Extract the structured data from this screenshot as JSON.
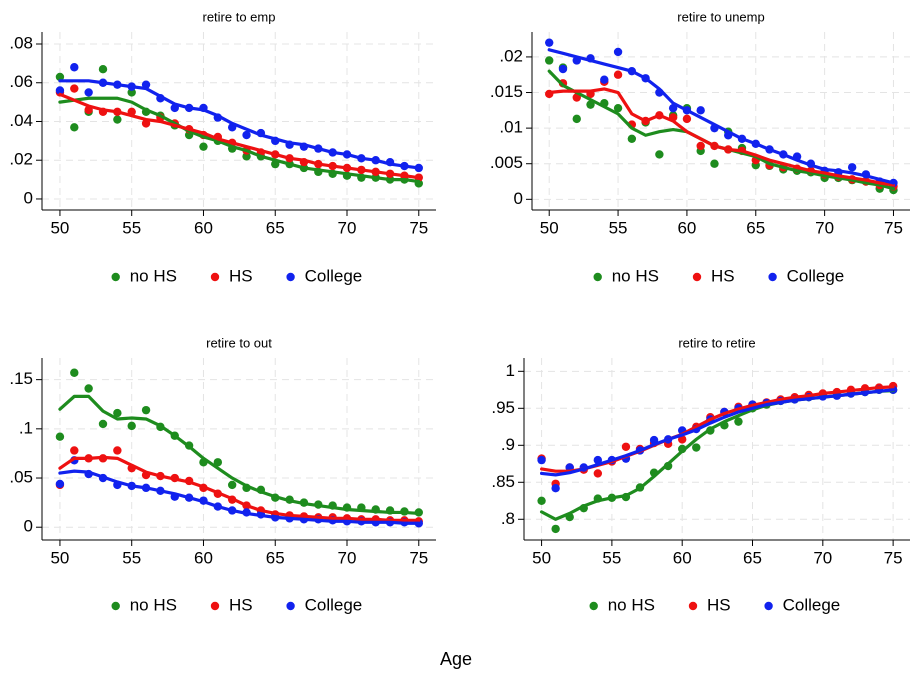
{
  "xlabel": "Age",
  "chart_data": [
    {
      "type": "scatter",
      "title": "retire to emp",
      "grid": true,
      "x": [
        50,
        51,
        52,
        53,
        54,
        55,
        56,
        57,
        58,
        59,
        60,
        61,
        62,
        63,
        64,
        65,
        66,
        67,
        68,
        69,
        70,
        71,
        72,
        73,
        74,
        75
      ],
      "xlim": [
        48.75,
        76.2
      ],
      "xticks": [
        50,
        55,
        60,
        65,
        70,
        75
      ],
      "ylim": [
        -0.0057,
        0.0862
      ],
      "yticks": [
        0,
        {
          "value": 0.02,
          "label": ".02"
        },
        {
          "value": 0.04,
          "label": ".04"
        },
        {
          "value": 0.06,
          "label": ".06"
        },
        {
          "value": 0.08,
          "label": ".08"
        }
      ],
      "series": [
        {
          "name": "no HS",
          "color": "#1e8c1e",
          "values": [
            0.063,
            0.037,
            0.045,
            0.067,
            0.041,
            0.055,
            0.045,
            0.043,
            0.038,
            0.033,
            0.027,
            0.03,
            0.026,
            0.022,
            0.022,
            0.018,
            0.018,
            0.016,
            0.014,
            0.013,
            0.012,
            0.011,
            0.011,
            0.01,
            0.01,
            0.008
          ],
          "fit": [
            0.05,
            0.051,
            0.052,
            0.052,
            0.052,
            0.05,
            0.046,
            0.043,
            0.039,
            0.035,
            0.032,
            0.03,
            0.027,
            0.025,
            0.022,
            0.02,
            0.018,
            0.016,
            0.015,
            0.014,
            0.013,
            0.012,
            0.011,
            0.01,
            0.01,
            0.009
          ]
        },
        {
          "name": "HS",
          "color": "#ee1111",
          "values": [
            0.055,
            0.057,
            0.046,
            0.045,
            0.045,
            0.045,
            0.039,
            0.042,
            0.039,
            0.036,
            0.033,
            0.032,
            0.029,
            0.025,
            0.024,
            0.023,
            0.021,
            0.019,
            0.018,
            0.017,
            0.016,
            0.015,
            0.014,
            0.013,
            0.012,
            0.011
          ],
          "fit": [
            0.054,
            0.051,
            0.048,
            0.046,
            0.045,
            0.043,
            0.041,
            0.04,
            0.038,
            0.036,
            0.034,
            0.031,
            0.029,
            0.027,
            0.025,
            0.023,
            0.021,
            0.02,
            0.018,
            0.017,
            0.016,
            0.015,
            0.014,
            0.013,
            0.012,
            0.011
          ]
        },
        {
          "name": "College",
          "color": "#1122ee",
          "values": [
            0.056,
            0.068,
            0.055,
            0.06,
            0.059,
            0.058,
            0.059,
            0.052,
            0.047,
            0.047,
            0.047,
            0.042,
            0.037,
            0.033,
            0.034,
            0.03,
            0.028,
            0.027,
            0.026,
            0.024,
            0.023,
            0.021,
            0.02,
            0.019,
            0.017,
            0.016
          ],
          "fit": [
            0.061,
            0.061,
            0.061,
            0.06,
            0.059,
            0.058,
            0.057,
            0.053,
            0.049,
            0.047,
            0.046,
            0.043,
            0.039,
            0.036,
            0.033,
            0.031,
            0.029,
            0.028,
            0.026,
            0.024,
            0.023,
            0.021,
            0.02,
            0.018,
            0.017,
            0.016
          ]
        }
      ]
    },
    {
      "type": "scatter",
      "title": "retire to unemp",
      "grid": true,
      "x": [
        50,
        51,
        52,
        53,
        54,
        55,
        56,
        57,
        58,
        59,
        60,
        61,
        62,
        63,
        64,
        65,
        66,
        67,
        68,
        69,
        70,
        71,
        72,
        73,
        74,
        75
      ],
      "xlim": [
        48.75,
        76.2
      ],
      "xticks": [
        50,
        55,
        60,
        65,
        70,
        75
      ],
      "ylim": [
        -0.0015,
        0.0235
      ],
      "yticks": [
        0,
        {
          "value": 0.005,
          "label": ".005"
        },
        {
          "value": 0.01,
          "label": ".01"
        },
        {
          "value": 0.015,
          "label": ".015"
        },
        {
          "value": 0.02,
          "label": ".02"
        }
      ],
      "series": [
        {
          "name": "no HS",
          "color": "#1e8c1e",
          "values": [
            0.0195,
            0.0185,
            0.0113,
            0.0133,
            0.0135,
            0.0128,
            0.0085,
            0.0108,
            0.0063,
            0.0118,
            0.0128,
            0.0068,
            0.005,
            0.0095,
            0.0072,
            0.0048,
            0.0047,
            0.0042,
            0.004,
            0.0038,
            0.003,
            0.003,
            0.0027,
            0.0025,
            0.0015,
            0.0013
          ],
          "fit": [
            0.018,
            0.016,
            0.015,
            0.014,
            0.013,
            0.012,
            0.01,
            0.009,
            0.0095,
            0.0098,
            0.0095,
            0.0085,
            0.0075,
            0.007,
            0.0065,
            0.006,
            0.005,
            0.0045,
            0.004,
            0.0037,
            0.0033,
            0.003,
            0.0027,
            0.0023,
            0.002,
            0.0015
          ]
        },
        {
          "name": "HS",
          "color": "#ee1111",
          "values": [
            0.0148,
            0.0163,
            0.0143,
            0.0148,
            0.0165,
            0.0175,
            0.0105,
            0.011,
            0.0118,
            0.0115,
            0.0113,
            0.0075,
            0.0075,
            0.007,
            0.0068,
            0.0055,
            0.0048,
            0.0045,
            0.0043,
            0.004,
            0.0035,
            0.0032,
            0.0028,
            0.0025,
            0.002,
            0.0018
          ],
          "fit": [
            0.015,
            0.0152,
            0.0152,
            0.0152,
            0.0155,
            0.015,
            0.012,
            0.011,
            0.0118,
            0.011,
            0.0095,
            0.0085,
            0.0075,
            0.007,
            0.0068,
            0.0062,
            0.0055,
            0.005,
            0.0045,
            0.004,
            0.0037,
            0.0033,
            0.003,
            0.0027,
            0.0023,
            0.002
          ]
        },
        {
          "name": "College",
          "color": "#1122ee",
          "values": [
            0.022,
            0.0183,
            0.0195,
            0.0198,
            0.0168,
            0.0207,
            0.018,
            0.017,
            0.015,
            0.0128,
            0.0125,
            0.0125,
            0.01,
            0.009,
            0.0085,
            0.0078,
            0.007,
            0.0063,
            0.006,
            0.005,
            0.004,
            0.0038,
            0.0045,
            0.0035,
            0.0025,
            0.0023
          ],
          "fit": [
            0.021,
            0.0205,
            0.02,
            0.0195,
            0.019,
            0.0185,
            0.018,
            0.017,
            0.0155,
            0.0135,
            0.0125,
            0.0115,
            0.0105,
            0.0095,
            0.0085,
            0.0078,
            0.007,
            0.0063,
            0.0055,
            0.0048,
            0.0042,
            0.004,
            0.0037,
            0.0033,
            0.0028,
            0.0023
          ]
        }
      ]
    },
    {
      "type": "scatter",
      "title": "retire to out",
      "grid": true,
      "x": [
        50,
        51,
        52,
        53,
        54,
        55,
        56,
        57,
        58,
        59,
        60,
        61,
        62,
        63,
        64,
        65,
        66,
        67,
        68,
        69,
        70,
        71,
        72,
        73,
        74,
        75
      ],
      "xlim": [
        48.75,
        76.2
      ],
      "xticks": [
        50,
        55,
        60,
        65,
        70,
        75
      ],
      "ylim": [
        -0.013,
        0.172
      ],
      "yticks": [
        0,
        {
          "value": 0.05,
          "label": ".05"
        },
        {
          "value": 0.1,
          "label": ".1"
        },
        {
          "value": 0.15,
          "label": ".15"
        }
      ],
      "series": [
        {
          "name": "no HS",
          "color": "#1e8c1e",
          "values": [
            0.092,
            0.157,
            0.141,
            0.105,
            0.116,
            0.103,
            0.119,
            0.102,
            0.093,
            0.083,
            0.066,
            0.066,
            0.043,
            0.04,
            0.038,
            0.03,
            0.028,
            0.025,
            0.023,
            0.022,
            0.02,
            0.02,
            0.018,
            0.017,
            0.016,
            0.015
          ],
          "fit": [
            0.12,
            0.133,
            0.133,
            0.118,
            0.11,
            0.111,
            0.11,
            0.103,
            0.093,
            0.082,
            0.07,
            0.06,
            0.05,
            0.042,
            0.036,
            0.031,
            0.027,
            0.024,
            0.022,
            0.02,
            0.018,
            0.017,
            0.016,
            0.015,
            0.015,
            0.014
          ]
        },
        {
          "name": "HS",
          "color": "#ee1111",
          "values": [
            0.043,
            0.078,
            0.07,
            0.07,
            0.078,
            0.06,
            0.053,
            0.052,
            0.05,
            0.047,
            0.04,
            0.034,
            0.028,
            0.022,
            0.017,
            0.013,
            0.012,
            0.011,
            0.01,
            0.01,
            0.009,
            0.008,
            0.008,
            0.007,
            0.007,
            0.006
          ],
          "fit": [
            0.06,
            0.07,
            0.07,
            0.071,
            0.07,
            0.063,
            0.056,
            0.052,
            0.049,
            0.046,
            0.041,
            0.035,
            0.029,
            0.022,
            0.017,
            0.014,
            0.012,
            0.011,
            0.01,
            0.009,
            0.009,
            0.008,
            0.008,
            0.007,
            0.007,
            0.007
          ]
        },
        {
          "name": "College",
          "color": "#1122ee",
          "values": [
            0.044,
            0.068,
            0.054,
            0.05,
            0.043,
            0.042,
            0.04,
            0.037,
            0.031,
            0.03,
            0.027,
            0.021,
            0.017,
            0.015,
            0.013,
            0.01,
            0.009,
            0.008,
            0.008,
            0.007,
            0.006,
            0.006,
            0.005,
            0.005,
            0.005,
            0.004
          ],
          "fit": [
            0.055,
            0.057,
            0.056,
            0.051,
            0.046,
            0.042,
            0.04,
            0.037,
            0.034,
            0.03,
            0.026,
            0.021,
            0.017,
            0.014,
            0.012,
            0.01,
            0.009,
            0.008,
            0.007,
            0.006,
            0.006,
            0.005,
            0.005,
            0.005,
            0.004,
            0.004
          ]
        }
      ]
    },
    {
      "type": "scatter",
      "title": "retire to retire",
      "grid": true,
      "x": [
        50,
        51,
        52,
        53,
        54,
        55,
        56,
        57,
        58,
        59,
        60,
        61,
        62,
        63,
        64,
        65,
        66,
        67,
        68,
        69,
        70,
        71,
        72,
        73,
        74,
        75
      ],
      "xlim": [
        48.75,
        76.2
      ],
      "xticks": [
        50,
        55,
        60,
        65,
        70,
        75
      ],
      "ylim": [
        0.772,
        1.018
      ],
      "yticks": [
        {
          "value": 0.8,
          "label": ".8"
        },
        {
          "value": 0.85,
          "label": ".85"
        },
        {
          "value": 0.9,
          "label": ".9"
        },
        {
          "value": 0.95,
          "label": ".95"
        },
        1
      ],
      "series": [
        {
          "name": "no HS",
          "color": "#1e8c1e",
          "values": [
            0.825,
            0.787,
            0.803,
            0.815,
            0.828,
            0.829,
            0.83,
            0.843,
            0.863,
            0.872,
            0.895,
            0.897,
            0.92,
            0.927,
            0.932,
            0.95,
            0.955,
            0.96,
            0.962,
            0.965,
            0.967,
            0.968,
            0.97,
            0.972,
            0.975,
            0.975
          ],
          "fit": [
            0.81,
            0.8,
            0.808,
            0.818,
            0.825,
            0.829,
            0.832,
            0.842,
            0.858,
            0.875,
            0.892,
            0.908,
            0.922,
            0.932,
            0.94,
            0.948,
            0.954,
            0.958,
            0.961,
            0.963,
            0.965,
            0.967,
            0.969,
            0.971,
            0.973,
            0.974
          ]
        },
        {
          "name": "HS",
          "color": "#ee1111",
          "values": [
            0.882,
            0.848,
            0.87,
            0.867,
            0.862,
            0.878,
            0.898,
            0.895,
            0.903,
            0.902,
            0.908,
            0.925,
            0.938,
            0.945,
            0.952,
            0.955,
            0.958,
            0.962,
            0.965,
            0.968,
            0.97,
            0.972,
            0.975,
            0.977,
            0.978,
            0.98
          ],
          "fit": [
            0.868,
            0.865,
            0.865,
            0.868,
            0.873,
            0.878,
            0.885,
            0.892,
            0.9,
            0.908,
            0.915,
            0.925,
            0.935,
            0.943,
            0.949,
            0.954,
            0.958,
            0.962,
            0.965,
            0.967,
            0.97,
            0.972,
            0.974,
            0.976,
            0.978,
            0.979
          ]
        },
        {
          "name": "College",
          "color": "#1122ee",
          "values": [
            0.88,
            0.842,
            0.87,
            0.87,
            0.88,
            0.88,
            0.882,
            0.893,
            0.907,
            0.908,
            0.92,
            0.922,
            0.935,
            0.945,
            0.95,
            0.955,
            0.957,
            0.96,
            0.962,
            0.965,
            0.966,
            0.967,
            0.97,
            0.972,
            0.975,
            0.975
          ],
          "fit": [
            0.862,
            0.86,
            0.863,
            0.868,
            0.874,
            0.88,
            0.886,
            0.893,
            0.901,
            0.908,
            0.914,
            0.921,
            0.93,
            0.938,
            0.945,
            0.95,
            0.955,
            0.958,
            0.961,
            0.963,
            0.965,
            0.967,
            0.969,
            0.971,
            0.973,
            0.975
          ]
        }
      ]
    }
  ]
}
